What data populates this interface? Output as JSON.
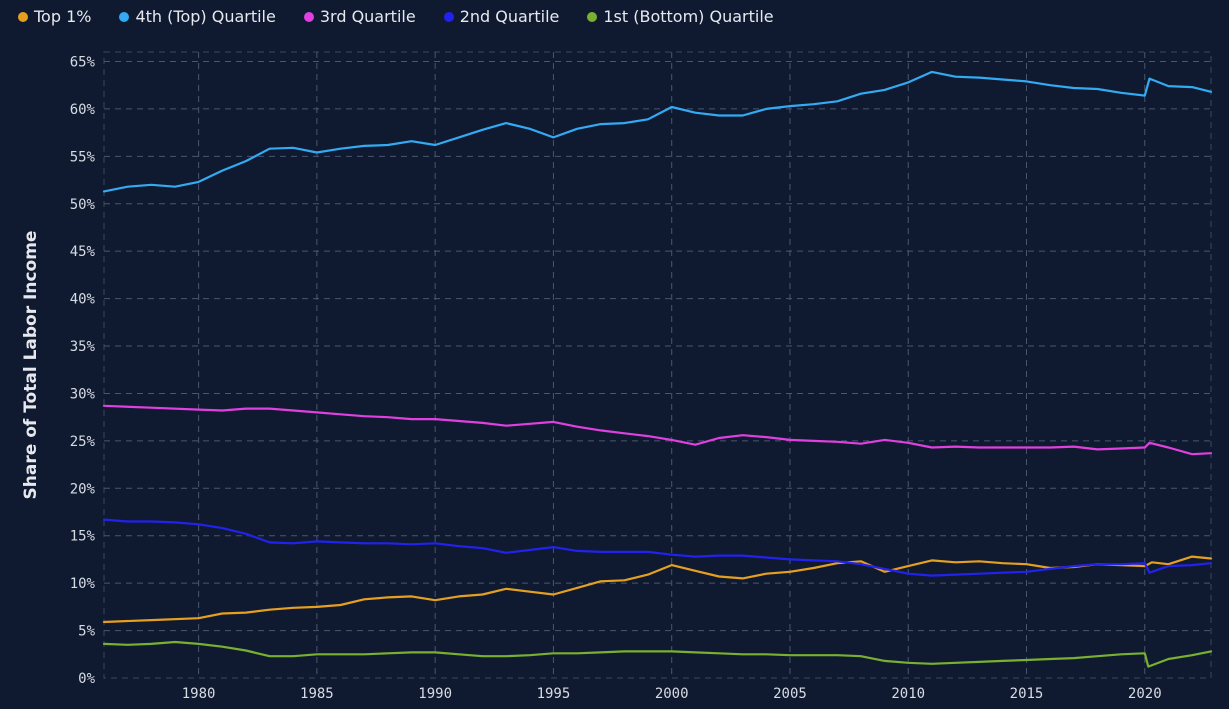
{
  "chart_data": {
    "type": "line",
    "title": "",
    "xlabel": "",
    "ylabel": "Share of Total Labor Income",
    "xlim": [
      1976,
      2022.8
    ],
    "ylim": [
      0,
      66
    ],
    "x_ticks": [
      1980,
      1985,
      1990,
      1995,
      2000,
      2005,
      2010,
      2015,
      2020
    ],
    "y_ticks": [
      0,
      5,
      10,
      15,
      20,
      25,
      30,
      35,
      40,
      45,
      50,
      55,
      60,
      65
    ],
    "y_tick_suffix": "%",
    "grid": true,
    "legend_position": "top-left",
    "series": [
      {
        "name": "Top 1%",
        "color": "#e6a020",
        "x": [
          1976,
          1978,
          1980,
          1981,
          1982,
          1983,
          1984,
          1985,
          1986,
          1987,
          1988,
          1989,
          1990,
          1991,
          1992,
          1993,
          1994,
          1995,
          1996,
          1997,
          1998,
          1999,
          2000,
          2001,
          2002,
          2003,
          2004,
          2005,
          2006,
          2007,
          2008,
          2009,
          2010,
          2011,
          2012,
          2013,
          2014,
          2015,
          2016,
          2017,
          2018,
          2019,
          2020,
          2020.3,
          2021,
          2022,
          2022.8
        ],
        "y": [
          5.9,
          6.1,
          6.3,
          6.8,
          6.9,
          7.2,
          7.4,
          7.5,
          7.7,
          8.3,
          8.5,
          8.6,
          8.2,
          8.6,
          8.8,
          9.4,
          9.1,
          8.8,
          9.5,
          10.2,
          10.3,
          10.9,
          11.9,
          11.3,
          10.7,
          10.5,
          11.0,
          11.2,
          11.6,
          12.1,
          12.3,
          11.2,
          11.8,
          12.4,
          12.2,
          12.3,
          12.1,
          12.0,
          11.6,
          11.7,
          12.0,
          11.9,
          11.8,
          12.2,
          12.0,
          12.8,
          12.6
        ]
      },
      {
        "name": "4th (Top) Quartile",
        "color": "#33aaf2",
        "x": [
          1976,
          1977,
          1978,
          1979,
          1980,
          1981,
          1982,
          1983,
          1984,
          1985,
          1986,
          1987,
          1988,
          1989,
          1990,
          1991,
          1992,
          1993,
          1994,
          1995,
          1996,
          1997,
          1998,
          1999,
          2000,
          2001,
          2002,
          2003,
          2004,
          2005,
          2006,
          2007,
          2008,
          2009,
          2010,
          2011,
          2012,
          2013,
          2014,
          2015,
          2016,
          2017,
          2018,
          2019,
          2020,
          2020.2,
          2021,
          2022,
          2022.8
        ],
        "y": [
          51.3,
          51.8,
          52.0,
          51.8,
          52.3,
          53.5,
          54.5,
          55.8,
          55.9,
          55.4,
          55.8,
          56.1,
          56.2,
          56.6,
          56.2,
          57.0,
          57.8,
          58.5,
          57.9,
          57.0,
          57.9,
          58.4,
          58.5,
          58.9,
          60.2,
          59.6,
          59.3,
          59.3,
          60.0,
          60.3,
          60.5,
          60.8,
          61.6,
          62.0,
          62.8,
          63.9,
          63.4,
          63.3,
          63.1,
          62.9,
          62.5,
          62.2,
          62.1,
          61.7,
          61.4,
          63.2,
          62.4,
          62.3,
          61.8
        ]
      },
      {
        "name": "3rd Quartile",
        "color": "#e040e0",
        "x": [
          1976,
          1978,
          1980,
          1981,
          1982,
          1983,
          1984,
          1985,
          1986,
          1987,
          1988,
          1989,
          1990,
          1991,
          1992,
          1993,
          1994,
          1995,
          1996,
          1997,
          1998,
          1999,
          2000,
          2001,
          2002,
          2003,
          2004,
          2005,
          2006,
          2007,
          2008,
          2009,
          2010,
          2011,
          2012,
          2013,
          2014,
          2015,
          2016,
          2017,
          2018,
          2019,
          2020,
          2020.2,
          2021,
          2022,
          2022.8
        ],
        "y": [
          28.7,
          28.5,
          28.3,
          28.2,
          28.4,
          28.4,
          28.2,
          28.0,
          27.8,
          27.6,
          27.5,
          27.3,
          27.3,
          27.1,
          26.9,
          26.6,
          26.8,
          27.0,
          26.5,
          26.1,
          25.8,
          25.5,
          25.1,
          24.6,
          25.3,
          25.6,
          25.4,
          25.1,
          25.0,
          24.9,
          24.7,
          25.1,
          24.8,
          24.3,
          24.4,
          24.3,
          24.3,
          24.3,
          24.3,
          24.4,
          24.1,
          24.2,
          24.3,
          24.8,
          24.3,
          23.6,
          23.7
        ]
      },
      {
        "name": "2nd Quartile",
        "color": "#2222ee",
        "x": [
          1976,
          1977,
          1978,
          1979,
          1980,
          1981,
          1982,
          1983,
          1984,
          1985,
          1986,
          1987,
          1988,
          1989,
          1990,
          1991,
          1992,
          1993,
          1994,
          1995,
          1996,
          1997,
          1998,
          1999,
          2000,
          2001,
          2002,
          2003,
          2004,
          2005,
          2006,
          2007,
          2008,
          2009,
          2010,
          2011,
          2012,
          2013,
          2014,
          2015,
          2016,
          2017,
          2018,
          2019,
          2020,
          2020.2,
          2021,
          2022,
          2022.8
        ],
        "y": [
          16.7,
          16.5,
          16.5,
          16.4,
          16.2,
          15.8,
          15.2,
          14.3,
          14.2,
          14.4,
          14.3,
          14.2,
          14.2,
          14.1,
          14.2,
          13.9,
          13.7,
          13.2,
          13.5,
          13.8,
          13.4,
          13.3,
          13.3,
          13.3,
          13.0,
          12.8,
          12.9,
          12.9,
          12.7,
          12.5,
          12.4,
          12.3,
          12.0,
          11.5,
          11.0,
          10.8,
          10.9,
          11.0,
          11.1,
          11.2,
          11.5,
          11.8,
          12.0,
          12.0,
          12.1,
          11.1,
          11.8,
          11.9,
          12.1
        ]
      },
      {
        "name": "1st (Bottom) Quartile",
        "color": "#7ab030",
        "x": [
          1976,
          1977,
          1978,
          1979,
          1980,
          1981,
          1982,
          1983,
          1984,
          1985,
          1986,
          1987,
          1988,
          1989,
          1990,
          1991,
          1992,
          1993,
          1994,
          1995,
          1996,
          1997,
          1998,
          1999,
          2000,
          2001,
          2002,
          2003,
          2004,
          2005,
          2006,
          2007,
          2008,
          2009,
          2010,
          2011,
          2012,
          2013,
          2014,
          2015,
          2016,
          2017,
          2018,
          2019,
          2020,
          2020.15,
          2021,
          2022,
          2022.8
        ],
        "y": [
          3.6,
          3.5,
          3.6,
          3.8,
          3.6,
          3.3,
          2.9,
          2.3,
          2.3,
          2.5,
          2.5,
          2.5,
          2.6,
          2.7,
          2.7,
          2.5,
          2.3,
          2.3,
          2.4,
          2.6,
          2.6,
          2.7,
          2.8,
          2.8,
          2.8,
          2.7,
          2.6,
          2.5,
          2.5,
          2.4,
          2.4,
          2.4,
          2.3,
          1.8,
          1.6,
          1.5,
          1.6,
          1.7,
          1.8,
          1.9,
          2.0,
          2.1,
          2.3,
          2.5,
          2.6,
          1.2,
          2.0,
          2.4,
          2.8
        ]
      }
    ]
  }
}
